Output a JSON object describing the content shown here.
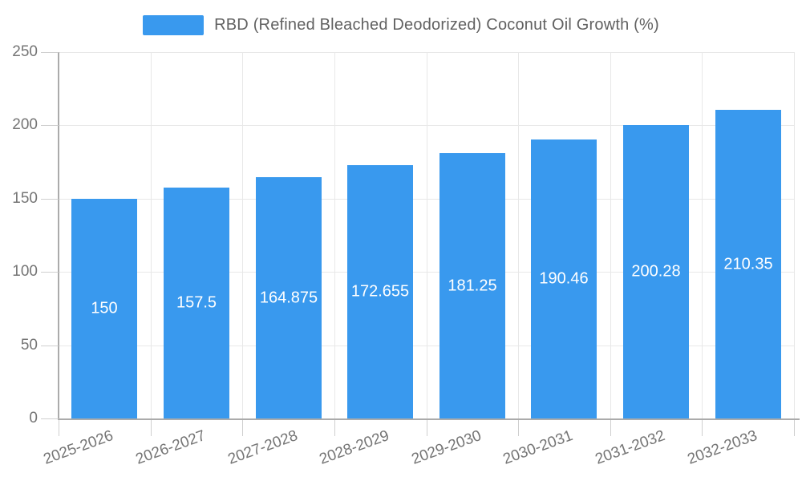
{
  "chart": {
    "legend": {
      "label": "RBD (Refined Bleached Deodorized) Coconut Oil Growth (%)"
    }
  },
  "chart_data": {
    "type": "bar",
    "title": "RBD (Refined Bleached Deodorized) Coconut Oil Growth (%)",
    "categories": [
      "2025-2026",
      "2026-2027",
      "2027-2028",
      "2028-2029",
      "2029-2030",
      "2030-2031",
      "2031-2032",
      "2032-2033"
    ],
    "values": [
      150,
      157.5,
      164.875,
      172.655,
      181.25,
      190.46,
      200.28,
      210.35
    ],
    "value_labels": [
      "150",
      "157.5",
      "164.875",
      "172.655",
      "181.25",
      "190.46",
      "200.28",
      "210.35"
    ],
    "xlabel": "",
    "ylabel": "",
    "ylim": [
      0,
      250
    ],
    "yticks": [
      0,
      50,
      100,
      150,
      200,
      250
    ],
    "grid": true,
    "legend_position": "top-center",
    "colors": {
      "bar": "#3999EE",
      "value_label": "#FFFFFF",
      "axis_line": "#ABABAB",
      "grid_line": "#E8E8E8",
      "tick_mark": "#CFCFCF",
      "tick_text": "#757575",
      "legend_text": "#616161"
    }
  }
}
